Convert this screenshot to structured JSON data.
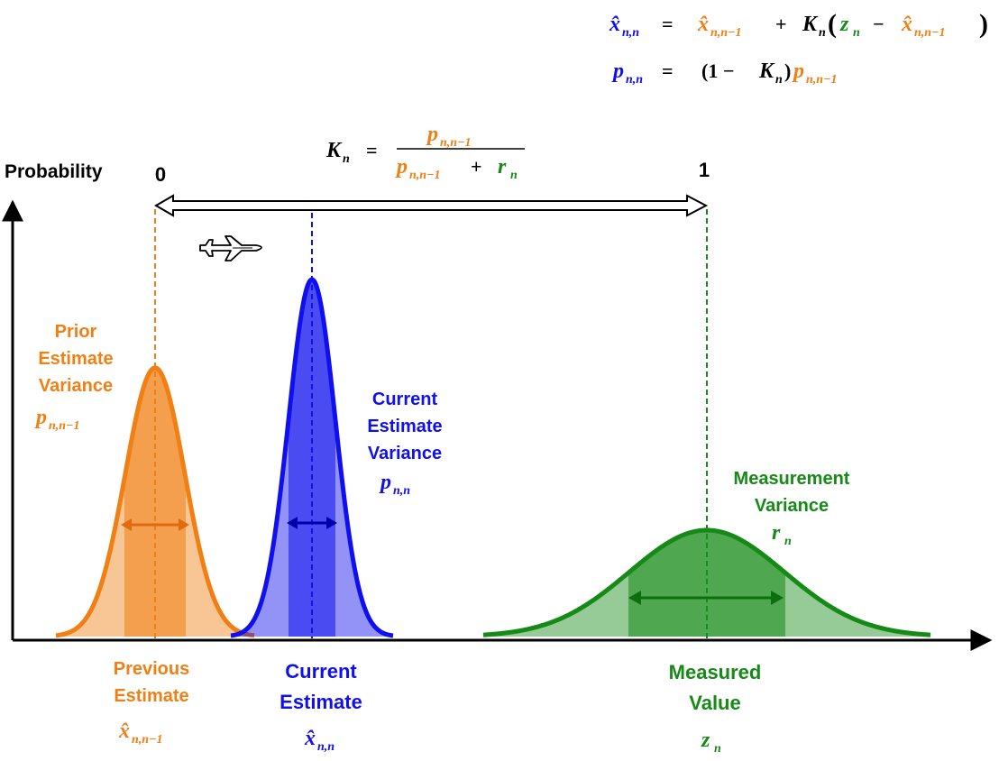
{
  "colors": {
    "prior": "#f07f14",
    "prior_dark": "#e06a10",
    "current": "#1010ee",
    "current_dark": "#0000aa",
    "measurement": "#168a16",
    "measurement_dark": "#0d6e0d",
    "ink": "#000000"
  },
  "equations": {
    "state_lhs": "x̂",
    "state_lhs_sub": "n,n",
    "state_eq": "=",
    "state_prior": "x̂",
    "state_prior_sub": "n,n−1",
    "plus": "+",
    "gain": "K",
    "gain_sub": "n",
    "z": "z",
    "z_sub": "n",
    "minus": "−",
    "state_prior2": "x̂",
    "state_prior2_sub": "n,n−1",
    "var_lhs": "p",
    "var_lhs_sub": "n,n",
    "var_eq": "=",
    "var_one": "(1 −",
    "var_gain": "K",
    "var_gain_sub": "n",
    "var_close": ")",
    "var_prior": "p",
    "var_prior_sub": "n,n−1",
    "kgain_lhs": "K",
    "kgain_lhs_sub": "n",
    "kgain_eq": "=",
    "kgain_num": "p",
    "kgain_num_sub": "n,n−1",
    "kgain_den_p": "p",
    "kgain_den_p_sub": "n,n−1",
    "kgain_den_plus": "+",
    "kgain_den_r": "r",
    "kgain_den_r_sub": "n"
  },
  "axis": {
    "y_label": "Probability",
    "gain_scale_min": "0",
    "gain_scale_max": "1"
  },
  "labels": {
    "prior_variance": [
      "Prior",
      "Estimate",
      "Variance"
    ],
    "prior_variance_sym": "p",
    "prior_variance_sub": "n,n−1",
    "current_variance": [
      "Current",
      "Estimate",
      "Variance"
    ],
    "current_variance_sym": "p",
    "current_variance_sub": "n,n",
    "measurement_variance": [
      "Measurement",
      "Variance"
    ],
    "measurement_variance_sym": "r",
    "measurement_variance_sub": "n",
    "previous_estimate": [
      "Previous",
      "Estimate"
    ],
    "previous_estimate_sym": "x̂",
    "previous_estimate_sub": "n,n−1",
    "current_estimate": [
      "Current",
      "Estimate"
    ],
    "current_estimate_sym": "x̂",
    "current_estimate_sub": "n,n",
    "measured_value": [
      "Measured",
      "Value"
    ],
    "measured_value_sym": "z",
    "measured_value_sub": "n"
  },
  "icons": {
    "aircraft": "airplane-icon"
  }
}
